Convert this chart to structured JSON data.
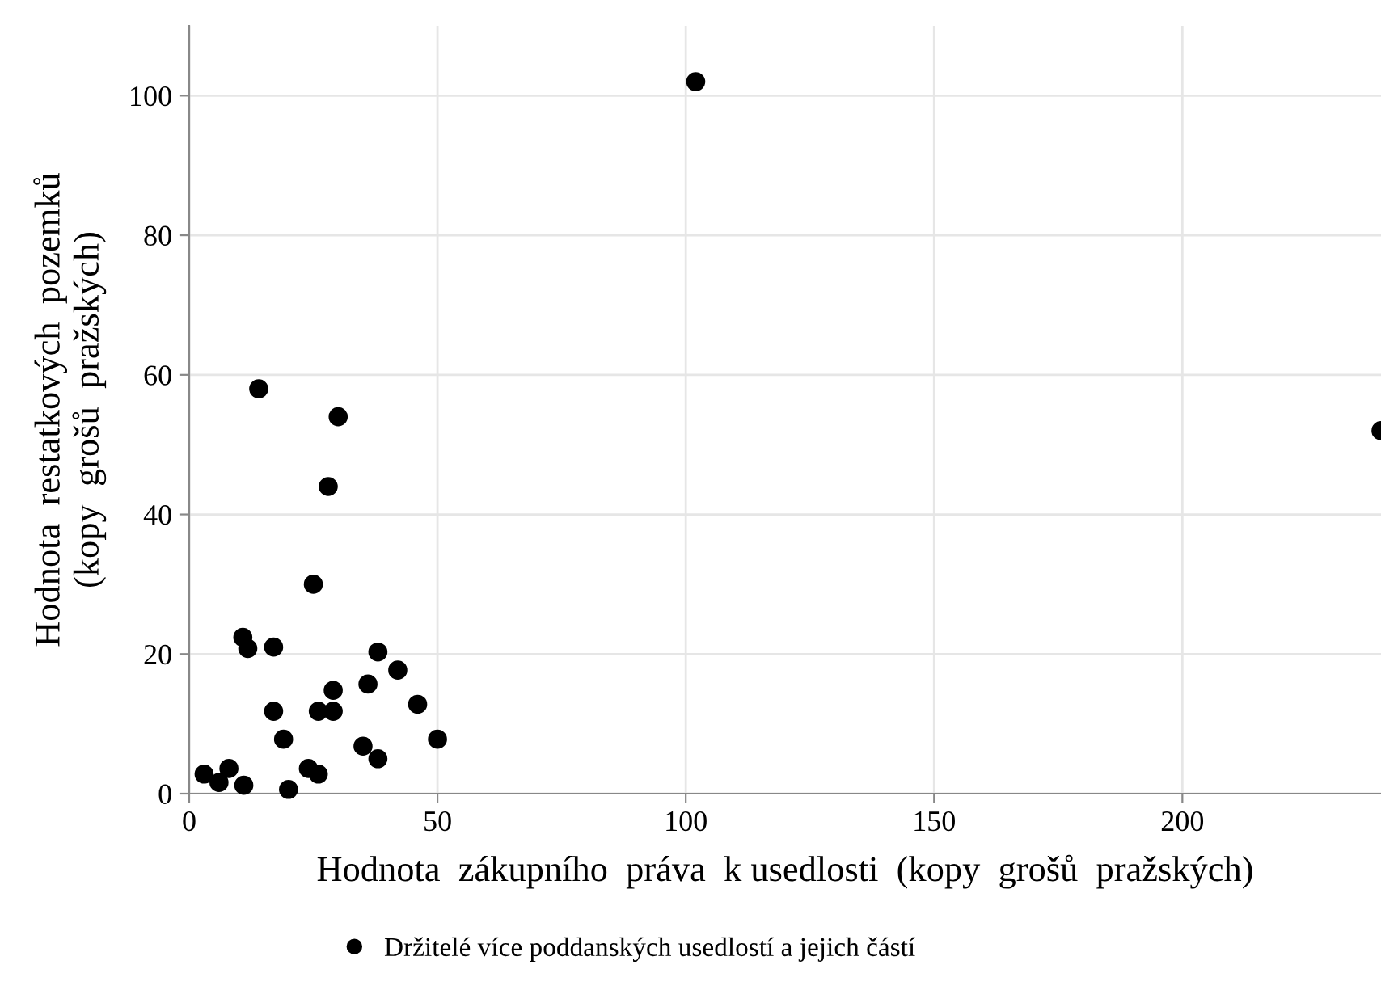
{
  "chart_data": {
    "type": "scatter",
    "xlabel": "Hodnota  zákupního  práva  k usedlosti  (kopy  grošů  pražských)",
    "ylabel": "Hodnota  restatkových  pozemků\n(kopy  grošů  pražských)",
    "xlim": [
      0,
      240
    ],
    "ylim": [
      0,
      110
    ],
    "xticks": [
      0,
      50,
      100,
      150,
      200
    ],
    "yticks": [
      0,
      20,
      40,
      60,
      80,
      100
    ],
    "grid": true,
    "legend": "bottom",
    "marker": "circle",
    "series": [
      {
        "name": "Držitelé více poddanských usedlostí a jejich částí",
        "color": "#000000",
        "x": [
          14,
          30,
          28,
          25,
          10.8,
          11.8,
          17,
          38,
          42,
          36,
          29,
          17,
          26,
          29,
          46,
          19,
          50,
          35,
          38,
          24,
          26,
          3,
          6,
          8,
          11,
          20,
          102,
          240
        ],
        "values": [
          58,
          54,
          44,
          30,
          22.4,
          20.8,
          21,
          20.3,
          17.7,
          15.7,
          14.8,
          11.8,
          11.8,
          11.8,
          12.8,
          7.8,
          7.8,
          6.8,
          5,
          3.6,
          2.8,
          2.8,
          1.6,
          3.6,
          1.2,
          0.6,
          102,
          52
        ]
      }
    ]
  }
}
